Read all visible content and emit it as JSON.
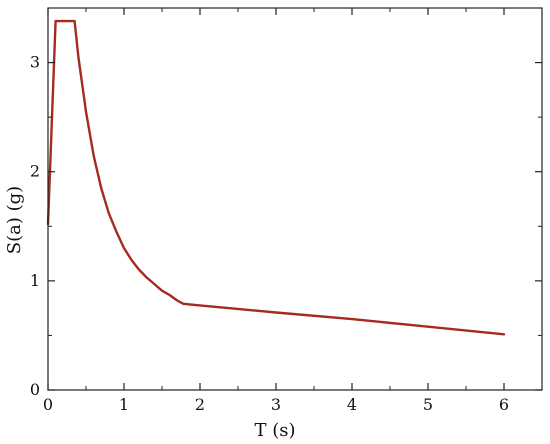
{
  "chart_data": {
    "type": "line",
    "xlabel": "T (s)",
    "ylabel": "S(a) (g)",
    "xlim": [
      0,
      6.5
    ],
    "ylim": [
      0,
      3.5
    ],
    "xticks": [
      0,
      1,
      2,
      3,
      4,
      5,
      6
    ],
    "yticks": [
      0,
      1,
      2,
      3
    ],
    "xtick_labels": [
      "0",
      "1",
      "2",
      "3",
      "4",
      "5",
      "6"
    ],
    "ytick_labels": [
      "0",
      "1",
      "2",
      "3"
    ],
    "grid": false,
    "series": [
      {
        "color": "#a52a1f",
        "points": [
          [
            0.0,
            1.52
          ],
          [
            0.1,
            3.38
          ],
          [
            0.35,
            3.38
          ],
          [
            0.4,
            3.05
          ],
          [
            0.5,
            2.55
          ],
          [
            0.6,
            2.15
          ],
          [
            0.7,
            1.85
          ],
          [
            0.8,
            1.62
          ],
          [
            0.9,
            1.45
          ],
          [
            1.0,
            1.3
          ],
          [
            1.1,
            1.19
          ],
          [
            1.2,
            1.1
          ],
          [
            1.3,
            1.03
          ],
          [
            1.4,
            0.97
          ],
          [
            1.5,
            0.91
          ],
          [
            1.6,
            0.87
          ],
          [
            1.7,
            0.82
          ],
          [
            1.78,
            0.79
          ],
          [
            2.0,
            0.775
          ],
          [
            3.0,
            0.71
          ],
          [
            4.0,
            0.65
          ],
          [
            5.0,
            0.58
          ],
          [
            6.0,
            0.51
          ]
        ]
      }
    ]
  }
}
